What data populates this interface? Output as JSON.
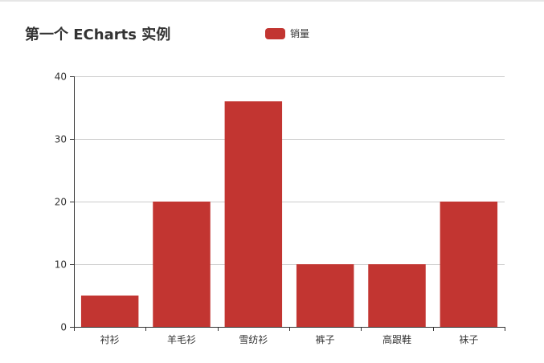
{
  "chart_data": {
    "type": "bar",
    "title": "第一个 ECharts 实例",
    "legend": [
      "销量"
    ],
    "legend_position": "top-center",
    "categories": [
      "衬衫",
      "羊毛衫",
      "雪纺衫",
      "裤子",
      "高跟鞋",
      "袜子"
    ],
    "series": [
      {
        "name": "销量",
        "values": [
          5,
          20,
          36,
          10,
          10,
          20
        ]
      }
    ],
    "yticks": [
      "0",
      "10",
      "20",
      "30",
      "40"
    ],
    "ylim": [
      0,
      40
    ],
    "grid": true,
    "colors": {
      "bar": "#c23531",
      "axis": "#333333",
      "grid": "#cccccc"
    }
  }
}
